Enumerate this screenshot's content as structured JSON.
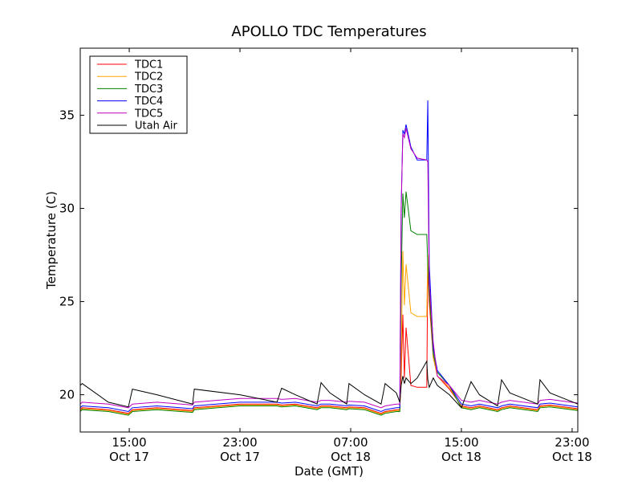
{
  "chart_data": {
    "type": "line",
    "title": "APOLLO TDC Temperatures",
    "xlabel": "Date (GMT)",
    "ylabel": "Temperature (C)",
    "x_units": "hours since Oct 17 00:00 GMT",
    "xlim": [
      11.46,
      47.41
    ],
    "ylim": [
      18,
      38.6
    ],
    "grid": false,
    "legend_position": "top-left",
    "xticks": [
      {
        "value": 15,
        "time": "15:00",
        "date": "Oct 17"
      },
      {
        "value": 23,
        "time": "23:00",
        "date": "Oct 17"
      },
      {
        "value": 31,
        "time": "07:00",
        "date": "Oct 18"
      },
      {
        "value": 39,
        "time": "15:00",
        "date": "Oct 18"
      },
      {
        "value": 47,
        "time": "23:00",
        "date": "Oct 18"
      }
    ],
    "yticks": [
      {
        "value": 20,
        "label": "20"
      },
      {
        "value": 25,
        "label": "25"
      },
      {
        "value": 30,
        "label": "30"
      },
      {
        "value": 35,
        "label": "35"
      }
    ],
    "x": [
      11.46,
      11.6,
      13.49,
      14.94,
      15.23,
      17,
      19.58,
      19.7,
      23,
      25.67,
      26.01,
      27,
      28.57,
      28.86,
      29.5,
      30.71,
      30.88,
      32,
      33.2,
      33.49,
      34.3,
      34.55,
      34.65,
      34.77,
      34.88,
      35.0,
      35.35,
      35.81,
      36.5,
      36.57,
      36.68,
      36.97,
      37.26,
      38.13,
      39.0,
      39.7,
      40.3,
      41.61,
      41.9,
      42.5,
      44.51,
      44.68,
      45.4,
      47.41
    ],
    "series": [
      {
        "name": "TDC1",
        "color": "#ff0000",
        "values": [
          19.2,
          19.3,
          19.2,
          19.0,
          19.2,
          19.3,
          19.15,
          19.3,
          19.5,
          19.5,
          19.45,
          19.5,
          19.3,
          19.4,
          19.4,
          19.3,
          19.35,
          19.3,
          19.0,
          19.1,
          19.2,
          19.2,
          21.0,
          24.3,
          20.9,
          23.6,
          20.5,
          20.4,
          20.4,
          27.0,
          25.0,
          22.0,
          21.0,
          20.3,
          19.4,
          19.3,
          19.4,
          19.2,
          19.3,
          19.4,
          19.2,
          19.4,
          19.45,
          19.25
        ]
      },
      {
        "name": "TDC2",
        "color": "#ffa500",
        "values": [
          19.15,
          19.25,
          19.15,
          18.95,
          19.15,
          19.25,
          19.1,
          19.25,
          19.45,
          19.45,
          19.4,
          19.45,
          19.25,
          19.35,
          19.35,
          19.25,
          19.3,
          19.25,
          18.95,
          19.05,
          19.15,
          19.15,
          22.0,
          27.7,
          24.8,
          27.0,
          24.4,
          24.2,
          24.2,
          27.5,
          25.5,
          22.0,
          21.0,
          20.4,
          19.35,
          19.25,
          19.35,
          19.15,
          19.25,
          19.35,
          19.15,
          19.35,
          19.4,
          19.2
        ]
      },
      {
        "name": "TDC3",
        "color": "#008000",
        "values": [
          19.1,
          19.2,
          19.1,
          18.9,
          19.1,
          19.2,
          19.05,
          19.2,
          19.4,
          19.4,
          19.35,
          19.4,
          19.2,
          19.3,
          19.3,
          19.2,
          19.25,
          19.2,
          18.9,
          19.0,
          19.1,
          19.1,
          26.0,
          30.8,
          29.5,
          30.9,
          28.8,
          28.6,
          28.6,
          27.0,
          25.5,
          22.2,
          21.2,
          20.5,
          19.3,
          19.2,
          19.3,
          19.1,
          19.2,
          19.3,
          19.1,
          19.3,
          19.35,
          19.15
        ]
      },
      {
        "name": "TDC4",
        "color": "#0000ff",
        "values": [
          19.3,
          19.4,
          19.3,
          19.1,
          19.3,
          19.4,
          19.25,
          19.4,
          19.6,
          19.6,
          19.55,
          19.6,
          19.4,
          19.5,
          19.5,
          19.4,
          19.45,
          19.4,
          19.1,
          19.2,
          19.3,
          19.3,
          30.0,
          34.2,
          34.0,
          34.5,
          33.3,
          32.6,
          32.6,
          35.8,
          27.0,
          22.5,
          21.3,
          20.5,
          19.5,
          19.4,
          19.5,
          19.3,
          19.4,
          19.5,
          19.3,
          19.5,
          19.55,
          19.35
        ]
      },
      {
        "name": "TDC5",
        "color": "#bf00bf",
        "values": [
          19.5,
          19.6,
          19.5,
          19.3,
          19.5,
          19.6,
          19.45,
          19.6,
          19.8,
          19.8,
          19.75,
          19.8,
          19.6,
          19.7,
          19.7,
          19.6,
          19.65,
          19.6,
          19.3,
          19.4,
          19.5,
          19.5,
          30.0,
          34.0,
          33.8,
          34.3,
          33.2,
          32.7,
          32.6,
          32.5,
          26.0,
          22.8,
          21.0,
          20.5,
          19.7,
          19.6,
          19.7,
          19.5,
          19.6,
          19.7,
          19.5,
          19.7,
          19.75,
          19.55
        ]
      },
      {
        "name": "Utah Air",
        "color": "#000000",
        "values": [
          20.5,
          20.6,
          19.6,
          19.35,
          20.3,
          20.0,
          19.5,
          20.3,
          20.0,
          19.6,
          20.35,
          20.0,
          19.5,
          20.65,
          20.1,
          19.5,
          20.6,
          20.0,
          19.5,
          20.6,
          20.1,
          19.6,
          20.5,
          21.0,
          20.6,
          20.9,
          20.6,
          20.9,
          21.8,
          20.8,
          20.4,
          20.9,
          20.5,
          20.0,
          19.3,
          20.7,
          20.0,
          19.4,
          20.8,
          20.1,
          19.5,
          20.8,
          20.1,
          19.5
        ]
      }
    ]
  }
}
